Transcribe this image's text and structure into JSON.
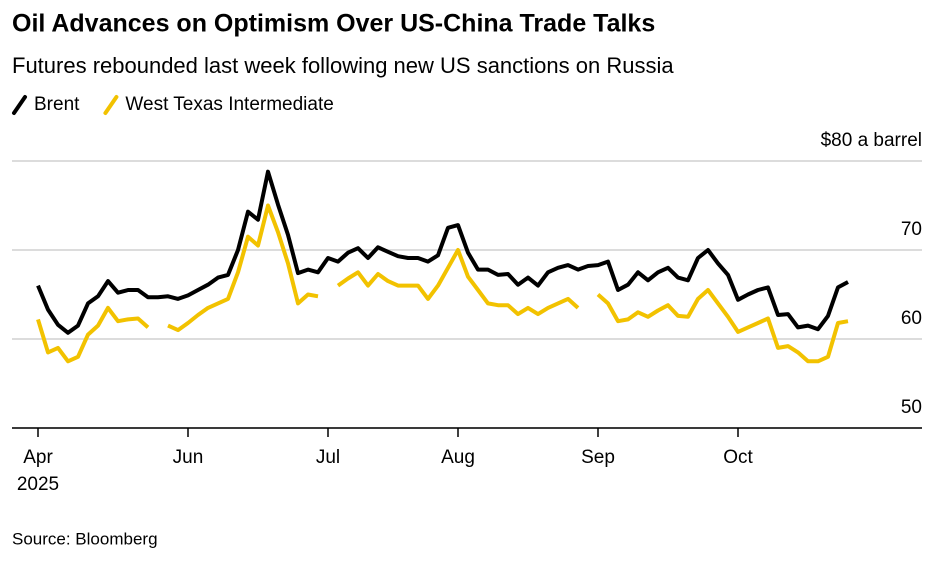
{
  "chart_data": {
    "type": "line",
    "title": "Oil Advances on Optimism Over US-China Trade Talks",
    "subtitle": "Futures rebounded last week following new US sanctions on Russia",
    "source": "Source: Bloomberg",
    "x_year": "2025",
    "legend": "top-left",
    "grid": true,
    "ylim": [
      50,
      80
    ],
    "yticks": [
      50,
      60,
      70,
      {
        "value": 80,
        "label": "$80 a barrel"
      }
    ],
    "categories": [
      "Apr",
      null,
      null,
      null,
      null,
      null,
      null,
      null,
      null,
      null,
      null,
      null,
      null,
      null,
      null,
      "Jun",
      null,
      null,
      null,
      null,
      null,
      null,
      null,
      null,
      null,
      null,
      null,
      null,
      null,
      "Jul",
      null,
      null,
      null,
      null,
      null,
      null,
      null,
      null,
      null,
      null,
      null,
      null,
      "Aug",
      null,
      null,
      null,
      null,
      null,
      null,
      null,
      null,
      null,
      null,
      null,
      null,
      null,
      "Sep",
      null,
      null,
      null,
      null,
      null,
      null,
      null,
      null,
      null,
      null,
      null,
      null,
      null,
      "Oct",
      null,
      null,
      null,
      null,
      null,
      null,
      null,
      null,
      null,
      null,
      null
    ],
    "series": [
      {
        "name": "Brent",
        "color": "#000000",
        "values": [
          66.0,
          63.3,
          61.6,
          60.7,
          61.5,
          64.0,
          64.8,
          66.5,
          65.2,
          65.5,
          65.5,
          64.7,
          64.7,
          64.8,
          64.5,
          64.9,
          65.5,
          66.1,
          66.9,
          67.2,
          70.0,
          74.3,
          73.4,
          78.8,
          75.1,
          71.7,
          67.4,
          67.8,
          67.5,
          69.1,
          68.7,
          69.7,
          70.2,
          69.1,
          70.3,
          69.8,
          69.3,
          69.1,
          69.1,
          68.7,
          69.4,
          72.5,
          72.8,
          69.7,
          67.8,
          67.8,
          67.2,
          67.3,
          66.1,
          66.9,
          66.0,
          67.5,
          68.0,
          68.3,
          67.8,
          68.2,
          68.3,
          68.7,
          65.5,
          66.1,
          67.5,
          66.6,
          67.5,
          68.0,
          66.9,
          66.6,
          69.1,
          70.0,
          68.5,
          67.2,
          64.4,
          65.0,
          65.5,
          65.8,
          62.7,
          62.8,
          61.3,
          61.5,
          61.1,
          62.6,
          65.8,
          66.4
        ]
      },
      {
        "name": "West Texas Intermediate",
        "color": "#f2c200",
        "values": [
          62.2,
          58.5,
          59.0,
          57.5,
          58.0,
          60.5,
          61.5,
          63.5,
          62.0,
          62.2,
          62.3,
          61.3,
          null,
          61.5,
          61.0,
          61.8,
          62.7,
          63.5,
          64.0,
          64.5,
          67.5,
          71.5,
          70.5,
          75.0,
          72.0,
          68.5,
          64.0,
          65.0,
          64.8,
          null,
          66.0,
          66.8,
          67.5,
          66.0,
          67.3,
          66.5,
          66.0,
          66.0,
          66.0,
          64.5,
          66.0,
          68.0,
          70.0,
          67.0,
          65.5,
          64.0,
          63.8,
          63.8,
          62.8,
          63.5,
          62.8,
          63.5,
          64.0,
          64.5,
          63.5,
          null,
          65.0,
          64.0,
          62.0,
          62.2,
          63.0,
          62.5,
          63.2,
          63.8,
          62.6,
          62.5,
          64.5,
          65.5,
          64.0,
          62.5,
          60.8,
          61.3,
          61.8,
          62.3,
          59.0,
          59.2,
          58.5,
          57.5,
          57.5,
          58.0,
          61.8,
          62.0
        ]
      }
    ]
  }
}
